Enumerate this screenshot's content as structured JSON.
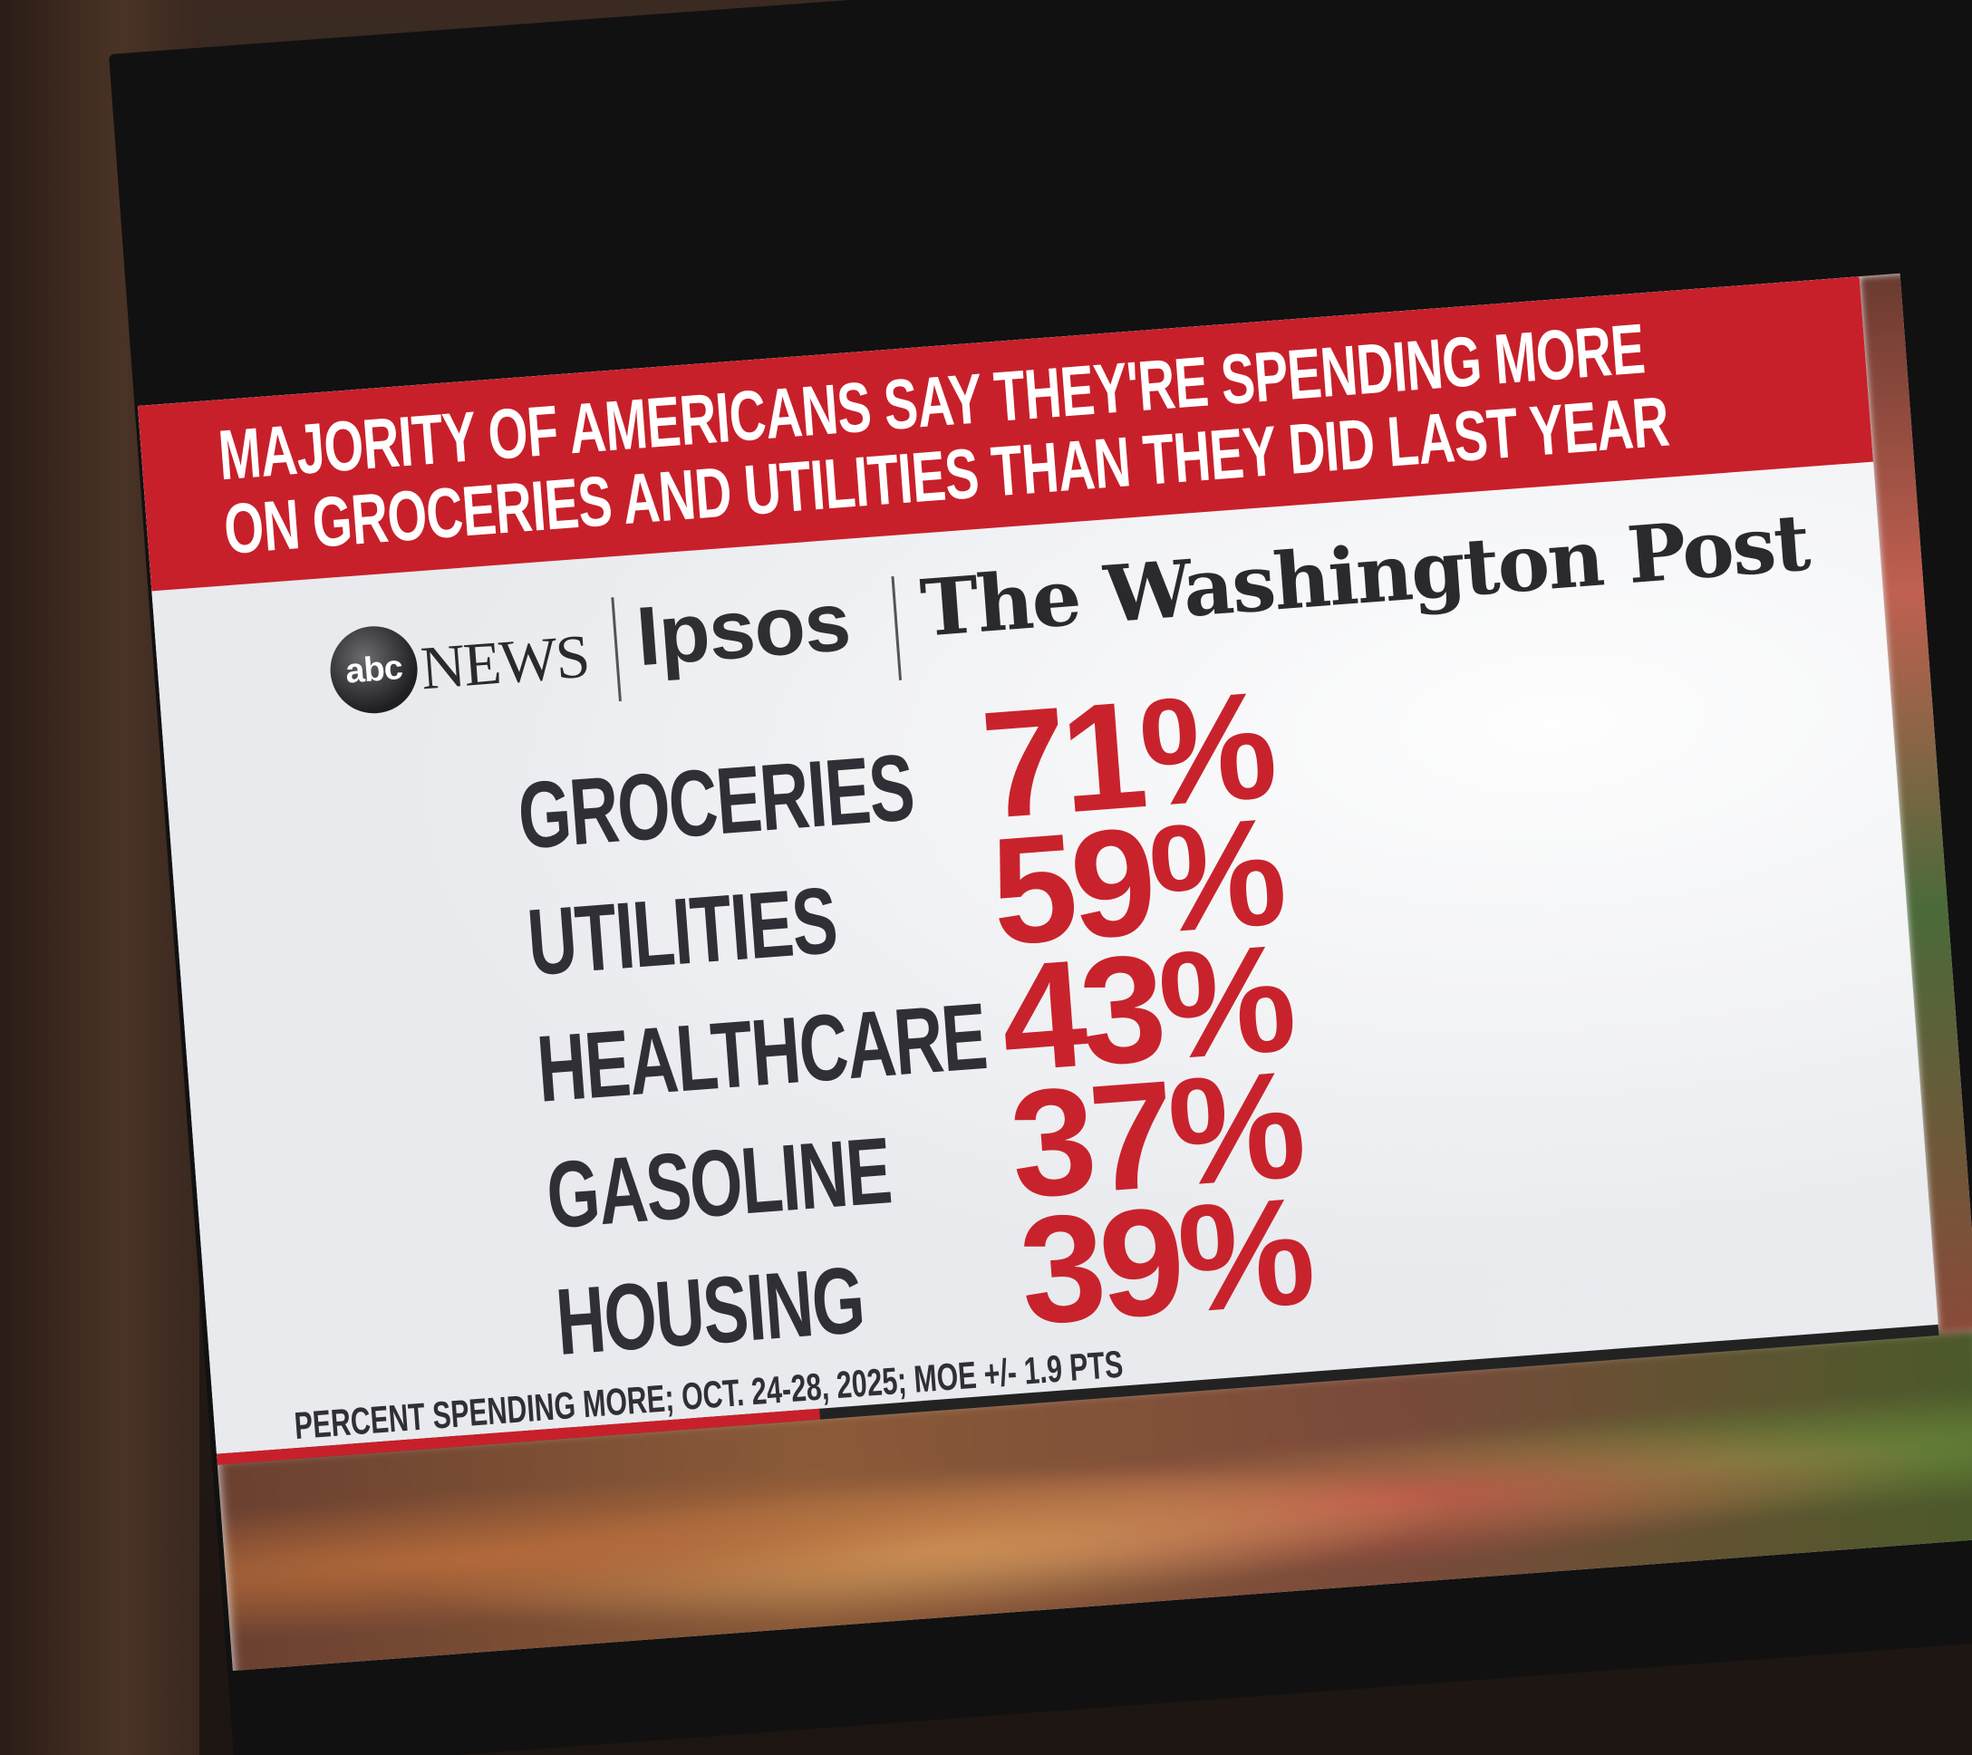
{
  "graphic": {
    "title_line_1": "MAJORITY OF AMERICANS SAY THEY'RE SPENDING MORE",
    "title_line_2": "ON GROCERIES AND UTILITIES THAN THEY DID LAST YEAR",
    "accent_color": "#c8202a",
    "text_color": "#2f2f35"
  },
  "logos": {
    "abc_mark": "abc",
    "abc_word": "NEWS",
    "ipsos": "Ipsos",
    "washington_post": "The Washington Post"
  },
  "rows": [
    {
      "label": "GROCERIES",
      "value": "71%"
    },
    {
      "label": "UTILITIES",
      "value": "59%"
    },
    {
      "label": "HEALTHCARE",
      "value": "43%"
    },
    {
      "label": "GASOLINE",
      "value": "37%"
    },
    {
      "label": "HOUSING",
      "value": "39%"
    }
  ],
  "footnote": "PERCENT SPENDING MORE; OCT. 24-28, 2025; MOE +/- 1.9 PTS",
  "progress": 0.35
}
